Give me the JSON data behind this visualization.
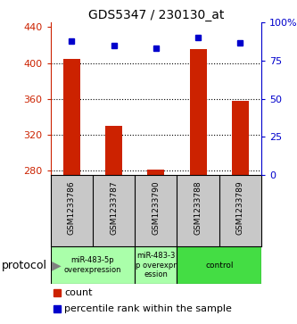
{
  "title": "GDS5347 / 230130_at",
  "samples": [
    "GSM1233786",
    "GSM1233787",
    "GSM1233790",
    "GSM1233788",
    "GSM1233789"
  ],
  "counts": [
    405,
    330,
    281,
    415,
    358
  ],
  "percentiles": [
    88,
    85,
    83,
    90,
    87
  ],
  "ylim_left": [
    275,
    445
  ],
  "yticks_left": [
    280,
    320,
    360,
    400,
    440
  ],
  "ylim_right": [
    0,
    100
  ],
  "yticks_right": [
    0,
    25,
    50,
    75,
    100
  ],
  "bar_color": "#cc2200",
  "marker_color": "#0000cc",
  "sample_bg": "#c8c8c8",
  "protocol_light_color": "#aaffaa",
  "protocol_dark_color": "#44dd44",
  "protocol_label": "protocol",
  "legend_count_label": "count",
  "legend_percentile_label": "percentile rank within the sample",
  "protocol_groups": [
    {
      "label": "miR-483-5p\noverexpression",
      "start": 0,
      "end": 1,
      "dark": false
    },
    {
      "label": "miR-483-3\np overexpr\nession",
      "start": 2,
      "end": 2,
      "dark": false
    },
    {
      "label": "control",
      "start": 3,
      "end": 4,
      "dark": true
    }
  ]
}
